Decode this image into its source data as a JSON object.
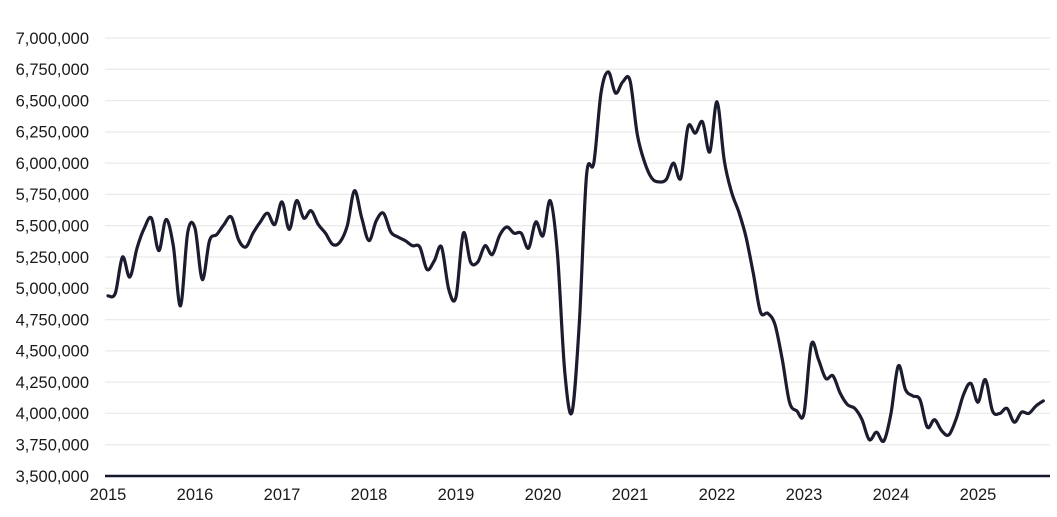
{
  "chart_data": {
    "type": "line",
    "title": "",
    "xlabel": "",
    "ylabel": "",
    "x_frequency": "monthly",
    "x_start": "2015-01",
    "x_end": "2025-10",
    "x_tick_labels": [
      "2015",
      "2016",
      "2017",
      "2018",
      "2019",
      "2020",
      "2021",
      "2022",
      "2023",
      "2024",
      "2025"
    ],
    "y_ticks": [
      7000000,
      6750000,
      6500000,
      6250000,
      6000000,
      5750000,
      5500000,
      5250000,
      5000000,
      4750000,
      4500000,
      4250000,
      4000000,
      3750000,
      3500000
    ],
    "y_tick_labels": [
      "7,000,000",
      "6,750,000",
      "6,500,000",
      "6,250,000",
      "6,000,000",
      "5,750,000",
      "5,500,000",
      "5,250,000",
      "5,000,000",
      "4,750,000",
      "4,500,000",
      "4,250,000",
      "4,000,000",
      "3,750,000",
      "3,500,000"
    ],
    "ylim": [
      3500000,
      7000000
    ],
    "grid": "horizontal-light",
    "legend": "none",
    "series": [
      {
        "name": "series-1",
        "color": "#1b1c2e",
        "values": [
          4940000,
          4960000,
          5250000,
          5090000,
          5320000,
          5480000,
          5560000,
          5300000,
          5550000,
          5340000,
          4860000,
          5450000,
          5480000,
          5070000,
          5380000,
          5430000,
          5510000,
          5570000,
          5390000,
          5330000,
          5440000,
          5530000,
          5600000,
          5510000,
          5690000,
          5470000,
          5700000,
          5560000,
          5620000,
          5510000,
          5440000,
          5350000,
          5370000,
          5500000,
          5780000,
          5560000,
          5380000,
          5540000,
          5600000,
          5450000,
          5410000,
          5380000,
          5340000,
          5330000,
          5150000,
          5220000,
          5330000,
          4990000,
          4930000,
          5440000,
          5210000,
          5210000,
          5340000,
          5270000,
          5420000,
          5490000,
          5440000,
          5440000,
          5320000,
          5530000,
          5420000,
          5700000,
          5270000,
          4330000,
          4010000,
          4720000,
          5900000,
          6000000,
          6560000,
          6730000,
          6560000,
          6650000,
          6660000,
          6230000,
          6010000,
          5880000,
          5850000,
          5870000,
          6000000,
          5880000,
          6290000,
          6240000,
          6330000,
          6090000,
          6490000,
          6020000,
          5770000,
          5610000,
          5410000,
          5120000,
          4810000,
          4800000,
          4710000,
          4430000,
          4090000,
          4020000,
          4000000,
          4550000,
          4430000,
          4280000,
          4300000,
          4160000,
          4070000,
          4040000,
          3950000,
          3790000,
          3850000,
          3780000,
          4000000,
          4380000,
          4190000,
          4140000,
          4110000,
          3890000,
          3950000,
          3860000,
          3830000,
          3960000,
          4150000,
          4240000,
          4090000,
          4270000,
          4020000,
          4000000,
          4040000,
          3930000,
          4010000,
          4000000,
          4060000,
          4100000
        ]
      }
    ]
  },
  "style": {
    "background": "#ffffff",
    "line_color": "#1b1c2e",
    "grid_color": "#ebebeb",
    "axis_color": "#15172a",
    "label_color": "#1a1a1a"
  }
}
